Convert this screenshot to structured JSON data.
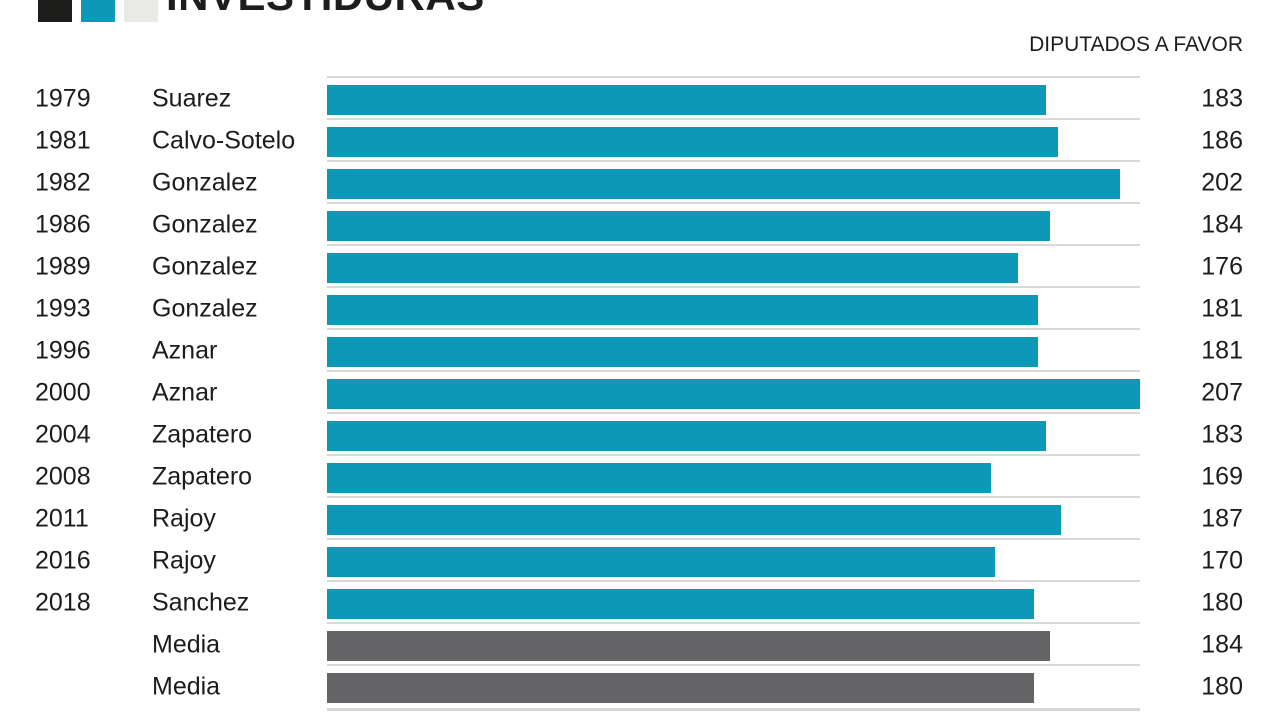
{
  "header": {
    "title": "INVESTIDURAS",
    "legend_colors": [
      "#1d1d1b",
      "#0c98b6",
      "#e9e9e6"
    ],
    "right_label": "DIPUTADOS A FAVOR"
  },
  "chart_data": {
    "type": "bar",
    "orientation": "horizontal",
    "title": "INVESTIDURAS",
    "value_axis_label": "DIPUTADOS A FAVOR",
    "x_max": 207,
    "grid": false,
    "bar_colors": {
      "investidura": "#0c98b6",
      "media": "#656466"
    },
    "track_line_color": "#d9d9d9",
    "rows": [
      {
        "year": "1979",
        "name": "Suarez",
        "value": 183,
        "type": "investidura"
      },
      {
        "year": "1981",
        "name": "Calvo-Sotelo",
        "value": 186,
        "type": "investidura"
      },
      {
        "year": "1982",
        "name": "Gonzalez",
        "value": 202,
        "type": "investidura"
      },
      {
        "year": "1986",
        "name": "Gonzalez",
        "value": 184,
        "type": "investidura"
      },
      {
        "year": "1989",
        "name": "Gonzalez",
        "value": 176,
        "type": "investidura"
      },
      {
        "year": "1993",
        "name": "Gonzalez",
        "value": 181,
        "type": "investidura"
      },
      {
        "year": "1996",
        "name": "Aznar",
        "value": 181,
        "type": "investidura"
      },
      {
        "year": "2000",
        "name": "Aznar",
        "value": 207,
        "type": "investidura"
      },
      {
        "year": "2004",
        "name": "Zapatero",
        "value": 183,
        "type": "investidura"
      },
      {
        "year": "2008",
        "name": "Zapatero",
        "value": 169,
        "type": "investidura"
      },
      {
        "year": "2011",
        "name": "Rajoy",
        "value": 187,
        "type": "investidura"
      },
      {
        "year": "2016",
        "name": "Rajoy",
        "value": 170,
        "type": "investidura"
      },
      {
        "year": "2018",
        "name": "Sanchez",
        "value": 180,
        "type": "investidura"
      },
      {
        "year": "",
        "name": "Media",
        "value": 184,
        "type": "media"
      },
      {
        "year": "",
        "name": "Media",
        "value": 180,
        "type": "media"
      }
    ]
  }
}
